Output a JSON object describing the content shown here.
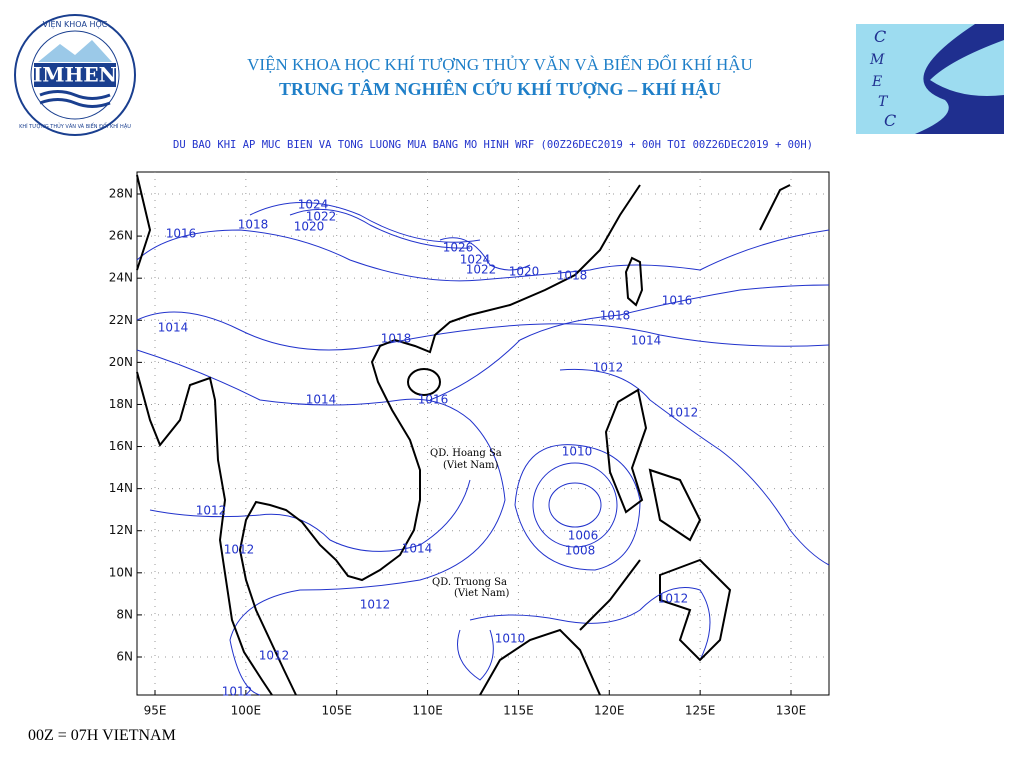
{
  "header": {
    "title_line1": "VIỆN KHOA HỌC KHÍ TƯỢNG THỦY VĂN VÀ BIẾN ĐỔI KHÍ HẬU",
    "title_line2": "TRUNG TÂM NGHIÊN CỨU KHÍ TƯỢNG – KHÍ HẬU",
    "logo_left": {
      "top": "VIỆN KHOA HỌC",
      "name": "IMHEN",
      "ring": "KHÍ TƯỢNG THỦY VĂN VÀ BIẾN ĐỔI KHÍ HẬU"
    },
    "logo_right": [
      "C",
      "M",
      "E",
      "T",
      "C"
    ]
  },
  "subtitle": "DU BAO KHI AP MUC BIEN VA TONG LUONG MUA BANG MO HINH WRF (00Z26DEC2019 + 00H TOI 00Z26DEC2019 + 00H)",
  "map": {
    "lat_ticks": [
      {
        "value": 28,
        "label": "28N"
      },
      {
        "value": 26,
        "label": "26N"
      },
      {
        "value": 24,
        "label": "24N"
      },
      {
        "value": 22,
        "label": "22N"
      },
      {
        "value": 20,
        "label": "20N"
      },
      {
        "value": 18,
        "label": "18N"
      },
      {
        "value": 16,
        "label": "16N"
      },
      {
        "value": 14,
        "label": "14N"
      },
      {
        "value": 12,
        "label": "12N"
      },
      {
        "value": 10,
        "label": "10N"
      },
      {
        "value": 8,
        "label": "8N"
      },
      {
        "value": 6,
        "label": "6N"
      }
    ],
    "lon_ticks": [
      {
        "value": 95,
        "label": "95E"
      },
      {
        "value": 100,
        "label": "100E"
      },
      {
        "value": 105,
        "label": "105E"
      },
      {
        "value": 110,
        "label": "110E"
      },
      {
        "value": 115,
        "label": "115E"
      },
      {
        "value": 120,
        "label": "120E"
      },
      {
        "value": 125,
        "label": "125E"
      },
      {
        "value": 130,
        "label": "130E"
      }
    ],
    "contour_labels": [
      1024,
      1022,
      1020,
      1018,
      1016,
      1026,
      1024,
      1022,
      1020,
      1018,
      1016,
      1018,
      1014,
      1018,
      1014,
      1012,
      1014,
      1016,
      1012,
      1010,
      1012,
      1006,
      1008,
      1012,
      1014,
      1012,
      1012,
      1010,
      1012,
      1012
    ],
    "places": [
      {
        "name": "QD. Hoang Sa",
        "note": "(Viet Nam)"
      },
      {
        "name": "QD. Truong Sa",
        "note": "(Viet Nam)"
      }
    ]
  },
  "footer": "00Z = 07H VIETNAM"
}
